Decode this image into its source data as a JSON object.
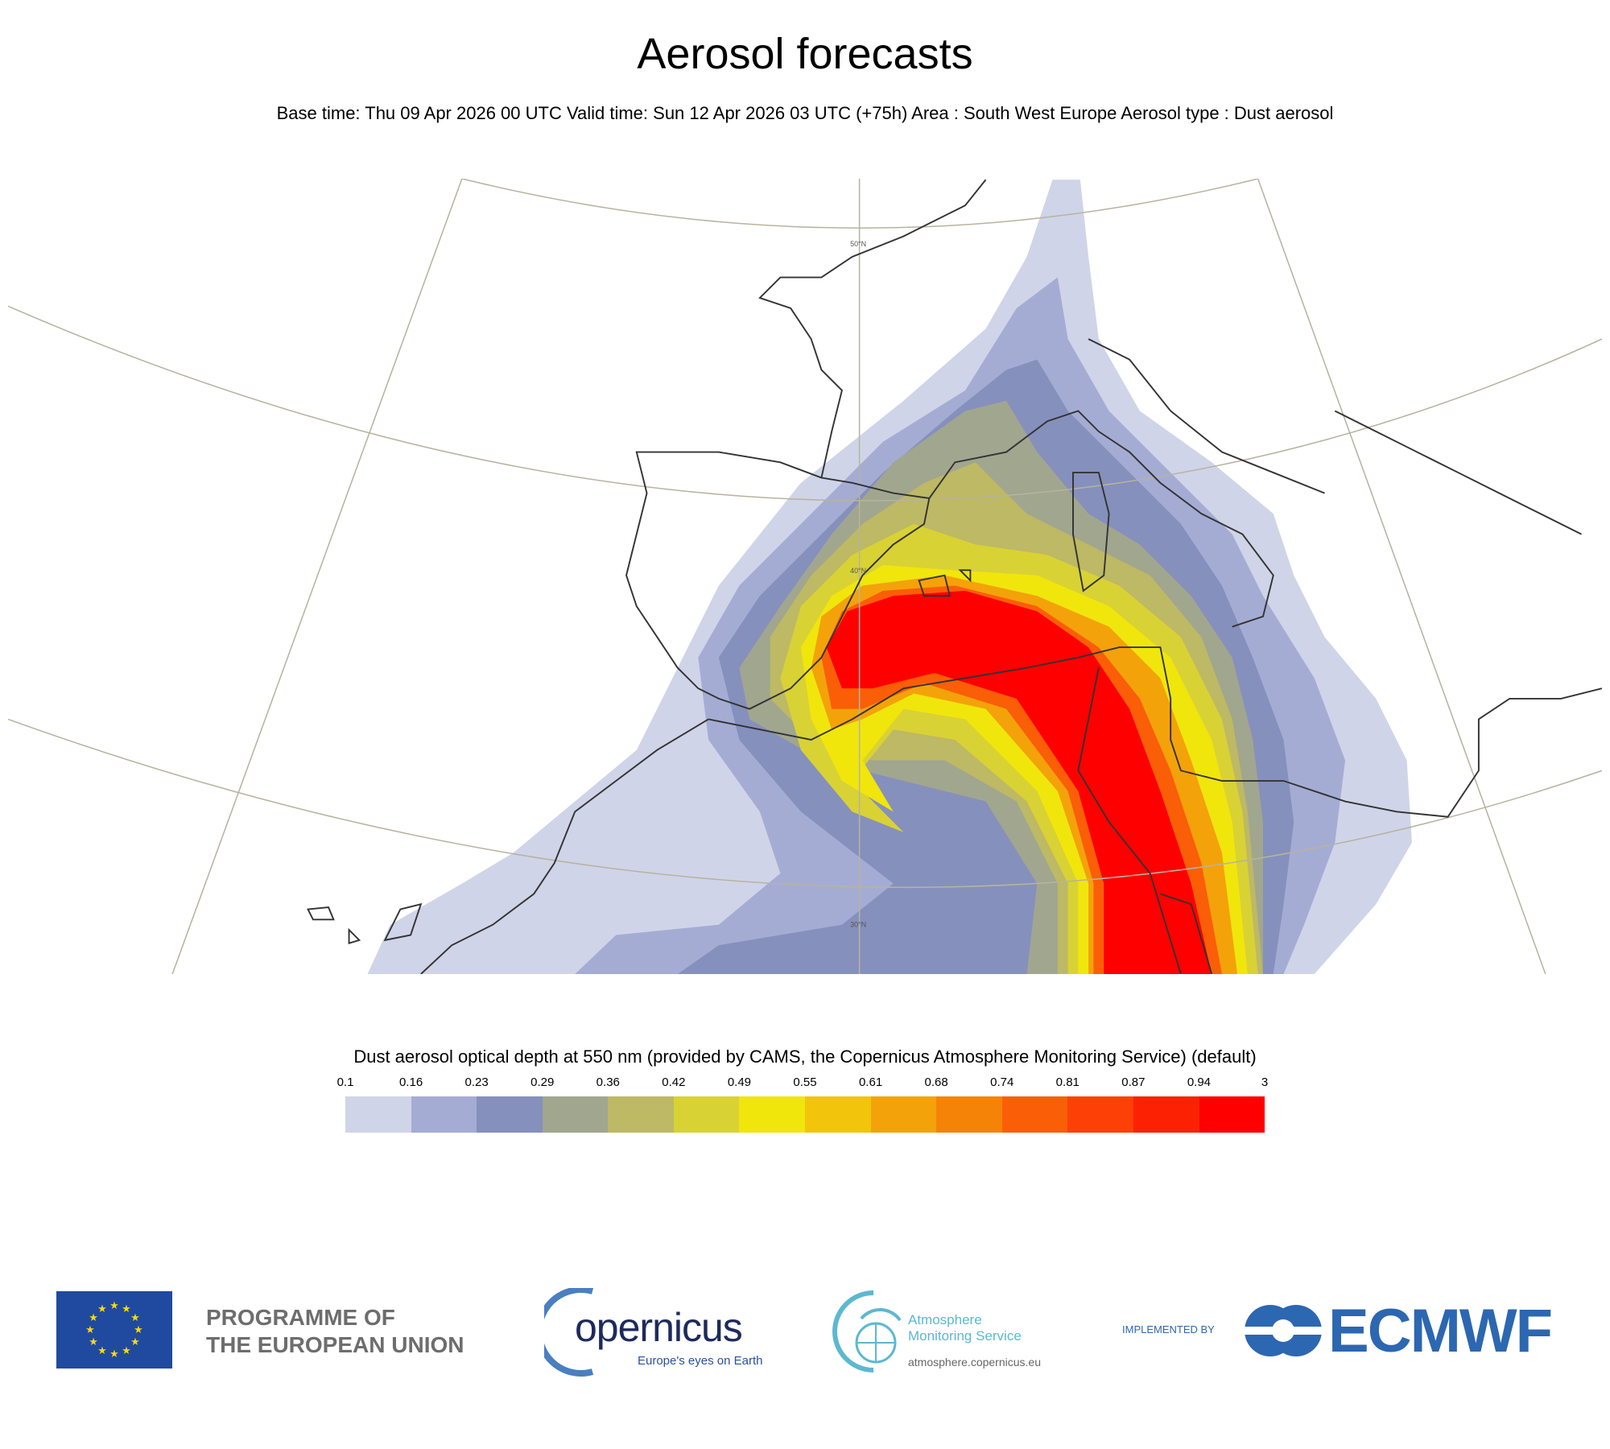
{
  "header": {
    "title": "Aerosol forecasts",
    "subtitle": "Base time: Thu 09 Apr 2026 00 UTC Valid time: Sun 12 Apr 2026 03 UTC (+75h) Area : South West Europe Aerosol type : Dust aerosol"
  },
  "map": {
    "latitude_labels": [
      "50°N",
      "40°N",
      "30°N"
    ]
  },
  "colorbar": {
    "title": "Dust aerosol optical depth at 550 nm (provided by CAMS, the Copernicus Atmosphere Monitoring Service) (default)",
    "ticks": [
      "0.1",
      "0.16",
      "0.23",
      "0.29",
      "0.36",
      "0.42",
      "0.49",
      "0.55",
      "0.61",
      "0.68",
      "0.74",
      "0.81",
      "0.87",
      "0.94",
      "3"
    ],
    "colors": [
      "#d0d4e8",
      "#a5acd4",
      "#8690bc",
      "#a1a68f",
      "#bdb964",
      "#d8d235",
      "#f0e60c",
      "#f2c40c",
      "#f4a20a",
      "#f58308",
      "#fa5e07",
      "#fc4006",
      "#fd2104",
      "#fe0000"
    ]
  },
  "footer": {
    "eu_line1": "PROGRAMME OF",
    "eu_line2": "THE EUROPEAN UNION",
    "copernicus_word": "opernicus",
    "copernicus_tagline": "Europe's eyes on Earth",
    "cams_line1": "Atmosphere",
    "cams_line2": "Monitoring Service",
    "cams_url": "atmosphere.copernicus.eu",
    "implemented_by": "IMPLEMENTED BY",
    "ecmwf": "ECMWF"
  }
}
